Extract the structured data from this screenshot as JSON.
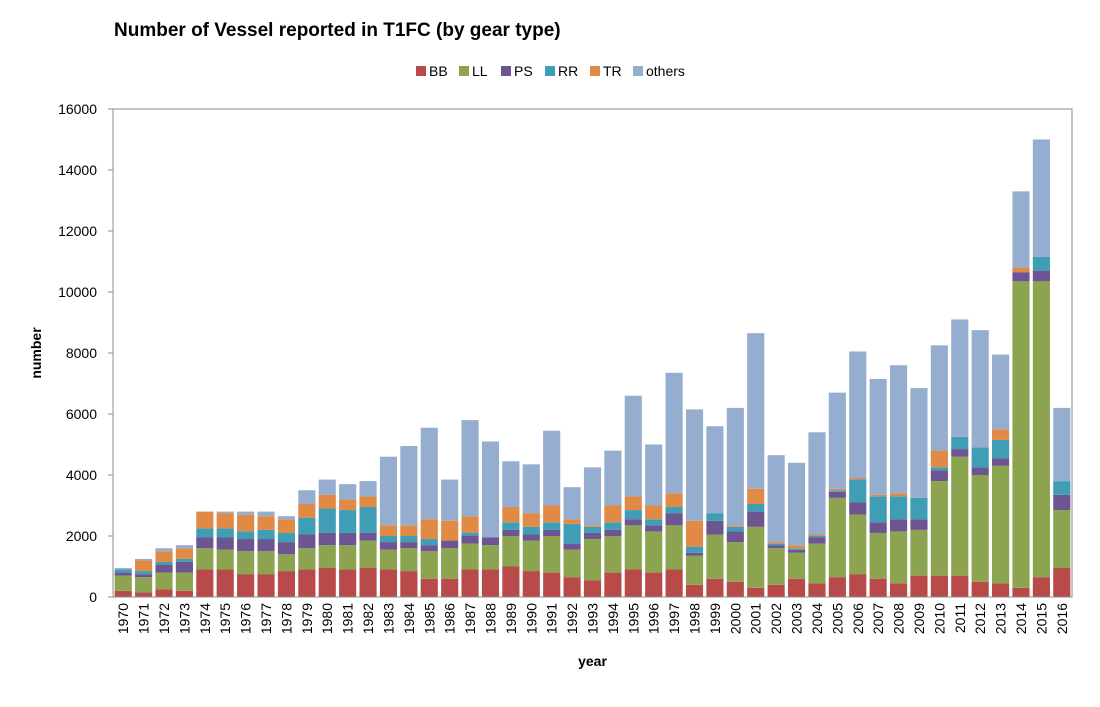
{
  "chart_data": {
    "type": "bar",
    "stacked": true,
    "title": "Number of Vessel reported in T1FC (by gear type)",
    "xlabel": "year",
    "ylabel": "number",
    "ylim": [
      0,
      16000
    ],
    "yticks": [
      0,
      2000,
      4000,
      6000,
      8000,
      10000,
      12000,
      14000,
      16000
    ],
    "grid": false,
    "legend_position": "top",
    "categories": [
      "1970",
      "1971",
      "1972",
      "1973",
      "1974",
      "1975",
      "1976",
      "1977",
      "1978",
      "1979",
      "1980",
      "1981",
      "1982",
      "1983",
      "1984",
      "1985",
      "1986",
      "1987",
      "1988",
      "1989",
      "1990",
      "1991",
      "1992",
      "1993",
      "1994",
      "1995",
      "1996",
      "1997",
      "1998",
      "1999",
      "2000",
      "2001",
      "2002",
      "2003",
      "2004",
      "2005",
      "2006",
      "2007",
      "2008",
      "2009",
      "2010",
      "2011",
      "2012",
      "2013",
      "2014",
      "2015",
      "2016"
    ],
    "series": [
      {
        "name": "BB",
        "color": "#b84a4a",
        "values": [
          200,
          150,
          250,
          200,
          900,
          900,
          750,
          750,
          850,
          900,
          950,
          900,
          950,
          900,
          850,
          600,
          600,
          900,
          900,
          1000,
          850,
          800,
          650,
          550,
          800,
          900,
          800,
          900,
          400,
          600,
          500,
          300,
          400,
          600,
          450,
          650,
          750,
          600,
          450,
          700,
          700,
          700,
          500,
          450,
          300,
          650,
          950
        ]
      },
      {
        "name": "LL",
        "color": "#8ca44f",
        "values": [
          500,
          500,
          550,
          600,
          700,
          650,
          750,
          750,
          550,
          700,
          750,
          800,
          900,
          650,
          750,
          900,
          1000,
          850,
          800,
          1000,
          1000,
          1200,
          900,
          1350,
          1200,
          1450,
          1350,
          1450,
          950,
          1450,
          1300,
          2000,
          1200,
          850,
          1300,
          2600,
          1950,
          1500,
          1700,
          1500,
          3100,
          3900,
          3500,
          3850,
          10050,
          9700,
          1900
        ]
      },
      {
        "name": "PS",
        "color": "#6c5591",
        "values": [
          100,
          100,
          250,
          350,
          350,
          400,
          400,
          400,
          400,
          450,
          400,
          400,
          250,
          250,
          200,
          200,
          250,
          250,
          250,
          200,
          200,
          200,
          200,
          200,
          200,
          200,
          200,
          400,
          100,
          450,
          350,
          500,
          100,
          100,
          200,
          200,
          400,
          350,
          400,
          350,
          350,
          250,
          250,
          250,
          300,
          350,
          500
        ]
      },
      {
        "name": "RR",
        "color": "#3f9db5",
        "values": [
          100,
          100,
          100,
          100,
          300,
          300,
          250,
          300,
          300,
          550,
          800,
          750,
          850,
          200,
          200,
          200,
          0,
          100,
          0,
          250,
          250,
          250,
          650,
          200,
          250,
          300,
          200,
          200,
          200,
          250,
          150,
          250,
          50,
          50,
          50,
          50,
          750,
          850,
          750,
          700,
          100,
          400,
          650,
          600,
          0,
          450,
          450
        ]
      },
      {
        "name": "TR",
        "color": "#e08a45",
        "values": [
          0,
          350,
          350,
          350,
          550,
          500,
          550,
          450,
          450,
          450,
          450,
          350,
          350,
          350,
          350,
          650,
          650,
          550,
          0,
          500,
          450,
          550,
          150,
          50,
          550,
          450,
          450,
          450,
          850,
          0,
          50,
          500,
          50,
          100,
          50,
          50,
          50,
          50,
          100,
          0,
          550,
          0,
          0,
          350,
          150,
          0,
          0
        ]
      },
      {
        "name": "others",
        "color": "#95aed0",
        "values": [
          50,
          50,
          100,
          100,
          0,
          50,
          100,
          150,
          100,
          450,
          500,
          500,
          500,
          2250,
          2600,
          3000,
          1350,
          3150,
          3150,
          1500,
          1600,
          2450,
          1050,
          1900,
          1800,
          3300,
          2000,
          3950,
          3650,
          2850,
          3850,
          5100,
          2850,
          2700,
          3350,
          3150,
          4150,
          3800,
          4200,
          3600,
          3450,
          3850,
          3850,
          2450,
          2500,
          3850,
          2400
        ]
      }
    ]
  }
}
